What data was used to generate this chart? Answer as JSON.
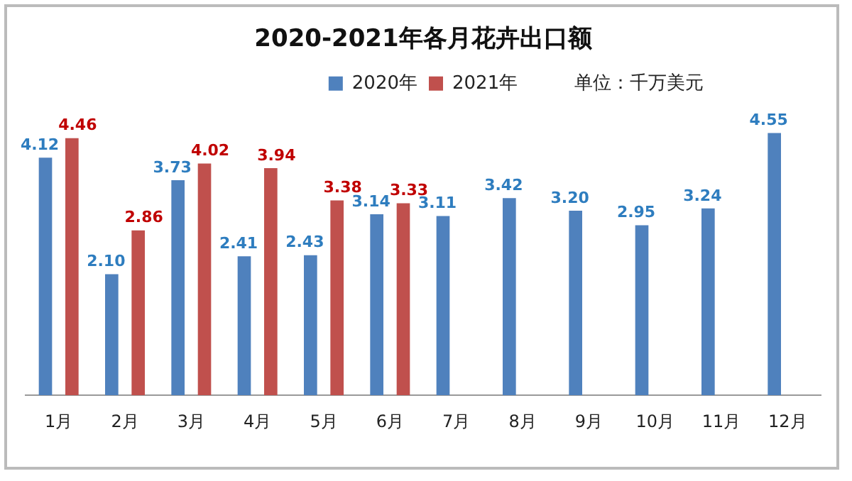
{
  "chart_data": {
    "type": "bar",
    "title": "2020-2021年各月花卉出口额",
    "categories": [
      "1月",
      "2月",
      "3月",
      "4月",
      "5月",
      "6月",
      "7月",
      "8月",
      "9月",
      "10月",
      "11月",
      "12月"
    ],
    "series": [
      {
        "name": "2020年",
        "color": "#4f81bd",
        "values": [
          4.12,
          2.1,
          3.73,
          2.41,
          2.43,
          3.14,
          3.11,
          3.42,
          3.2,
          2.95,
          3.24,
          4.55
        ],
        "value_labels": [
          "4.12",
          "2.10",
          "3.73",
          "2.41",
          "2.43",
          "3.14",
          "3.11",
          "3.42",
          "3.20",
          "2.95",
          "3.24",
          "4.55"
        ]
      },
      {
        "name": "2021年",
        "color": "#c0504d",
        "values": [
          4.46,
          2.86,
          4.02,
          3.94,
          3.38,
          3.33,
          null,
          null,
          null,
          null,
          null,
          null
        ],
        "value_labels": [
          "4.46",
          "2.86",
          "4.02",
          "3.94",
          "3.38",
          "3.33",
          null,
          null,
          null,
          null,
          null,
          null
        ]
      }
    ],
    "annotations": [
      "单位：千万美元"
    ],
    "legend": "top",
    "grid": false,
    "tick_labels": "x"
  }
}
